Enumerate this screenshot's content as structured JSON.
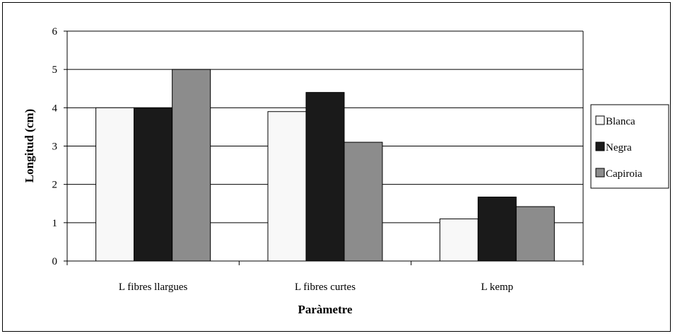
{
  "chart_data": {
    "type": "bar",
    "title": "",
    "xlabel": "Paràmetre",
    "ylabel": "Longitud (cm)",
    "ylim": [
      0,
      6
    ],
    "yticks": [
      0,
      1,
      2,
      3,
      4,
      5,
      6
    ],
    "grid": "horizontal",
    "legend_position": "right",
    "categories": [
      "L fibres llargues",
      "L fibres curtes",
      "L kemp"
    ],
    "series": [
      {
        "name": "Blanca",
        "color": "#f8f8f8",
        "values": [
          4.0,
          3.9,
          1.1
        ]
      },
      {
        "name": "Negra",
        "color": "#1a1a1a",
        "values": [
          4.0,
          4.4,
          1.67
        ]
      },
      {
        "name": "Capiroia",
        "color": "#8c8c8c",
        "values": [
          5.0,
          3.1,
          1.42
        ]
      }
    ]
  }
}
